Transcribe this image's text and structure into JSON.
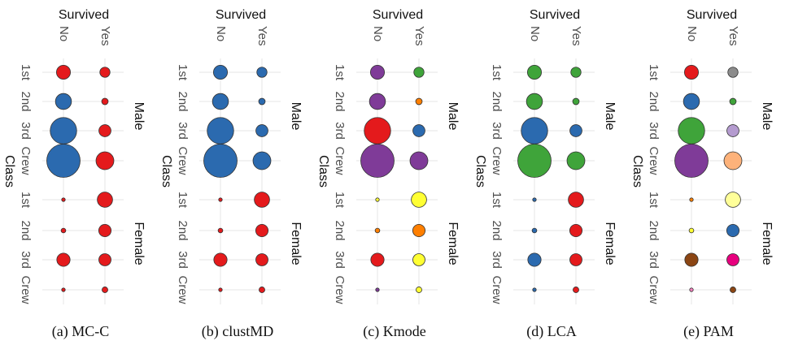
{
  "chart_data": [
    {
      "type": "scatter",
      "caption": "(a) MC-C",
      "column_title": "Survived",
      "row_title": "Class",
      "x_categories": [
        "No",
        "Yes"
      ],
      "y_categories": [
        "1st",
        "2nd",
        "3rd",
        "Crew"
      ],
      "facets": [
        "Male",
        "Female"
      ],
      "size": {
        "Male": {
          "No": [
            118,
            154,
            422,
            670
          ],
          "Yes": [
            62,
            25,
            88,
            192
          ]
        },
        "Female": {
          "No": [
            4,
            13,
            106,
            3
          ],
          "Yes": [
            141,
            93,
            90,
            20
          ]
        }
      },
      "color": {
        "Male": {
          "No": [
            "#E41A1C",
            "#2B6AAF",
            "#2B6AAF",
            "#2B6AAF"
          ],
          "Yes": [
            "#E41A1C",
            "#E41A1C",
            "#E41A1C",
            "#E41A1C"
          ]
        },
        "Female": {
          "No": [
            "#E41A1C",
            "#E41A1C",
            "#E41A1C",
            "#E41A1C"
          ],
          "Yes": [
            "#E41A1C",
            "#E41A1C",
            "#E41A1C",
            "#E41A1C"
          ]
        }
      }
    },
    {
      "type": "scatter",
      "caption": "(b) clustMD",
      "column_title": "Survived",
      "row_title": "Class",
      "x_categories": [
        "No",
        "Yes"
      ],
      "y_categories": [
        "1st",
        "2nd",
        "3rd",
        "Crew"
      ],
      "facets": [
        "Male",
        "Female"
      ],
      "size": {
        "Male": {
          "No": [
            118,
            154,
            422,
            670
          ],
          "Yes": [
            62,
            25,
            88,
            192
          ]
        },
        "Female": {
          "No": [
            4,
            13,
            106,
            3
          ],
          "Yes": [
            141,
            93,
            90,
            20
          ]
        }
      },
      "color": {
        "Male": {
          "No": [
            "#2B6AAF",
            "#2B6AAF",
            "#2B6AAF",
            "#2B6AAF"
          ],
          "Yes": [
            "#2B6AAF",
            "#2B6AAF",
            "#2B6AAF",
            "#2B6AAF"
          ]
        },
        "Female": {
          "No": [
            "#E41A1C",
            "#E41A1C",
            "#E41A1C",
            "#E41A1C"
          ],
          "Yes": [
            "#E41A1C",
            "#E41A1C",
            "#E41A1C",
            "#E41A1C"
          ]
        }
      }
    },
    {
      "type": "scatter",
      "caption": "(c) Kmode",
      "column_title": "Survived",
      "row_title": "Class",
      "x_categories": [
        "No",
        "Yes"
      ],
      "y_categories": [
        "1st",
        "2nd",
        "3rd",
        "Crew"
      ],
      "facets": [
        "Male",
        "Female"
      ],
      "size": {
        "Male": {
          "No": [
            118,
            154,
            422,
            670
          ],
          "Yes": [
            62,
            25,
            88,
            192
          ]
        },
        "Female": {
          "No": [
            4,
            13,
            106,
            3
          ],
          "Yes": [
            141,
            93,
            90,
            20
          ]
        }
      },
      "color": {
        "Male": {
          "No": [
            "#7F3B98",
            "#7F3B98",
            "#E41A1C",
            "#7F3B98"
          ],
          "Yes": [
            "#3FA43A",
            "#FF7F00",
            "#2B6AAF",
            "#7F3B98"
          ]
        },
        "Female": {
          "No": [
            "#FFFF33",
            "#FF7F00",
            "#E41A1C",
            "#7F3B98"
          ],
          "Yes": [
            "#FFFF33",
            "#FF7F00",
            "#FFFF33",
            "#FFFF33"
          ]
        }
      }
    },
    {
      "type": "scatter",
      "caption": "(d) LCA",
      "column_title": "Survived",
      "row_title": "Class",
      "x_categories": [
        "No",
        "Yes"
      ],
      "y_categories": [
        "1st",
        "2nd",
        "3rd",
        "Crew"
      ],
      "facets": [
        "Male",
        "Female"
      ],
      "size": {
        "Male": {
          "No": [
            118,
            154,
            422,
            670
          ],
          "Yes": [
            62,
            25,
            88,
            192
          ]
        },
        "Female": {
          "No": [
            4,
            13,
            106,
            3
          ],
          "Yes": [
            141,
            93,
            90,
            20
          ]
        }
      },
      "color": {
        "Male": {
          "No": [
            "#3FA43A",
            "#3FA43A",
            "#2B6AAF",
            "#3FA43A"
          ],
          "Yes": [
            "#3FA43A",
            "#3FA43A",
            "#2B6AAF",
            "#3FA43A"
          ]
        },
        "Female": {
          "No": [
            "#2B6AAF",
            "#2B6AAF",
            "#2B6AAF",
            "#2B6AAF"
          ],
          "Yes": [
            "#E41A1C",
            "#E41A1C",
            "#E41A1C",
            "#E41A1C"
          ]
        }
      }
    },
    {
      "type": "scatter",
      "caption": "(e) PAM",
      "column_title": "Survived",
      "row_title": "Class",
      "x_categories": [
        "No",
        "Yes"
      ],
      "y_categories": [
        "1st",
        "2nd",
        "3rd",
        "Crew"
      ],
      "facets": [
        "Male",
        "Female"
      ],
      "size": {
        "Male": {
          "No": [
            118,
            154,
            422,
            670
          ],
          "Yes": [
            62,
            25,
            88,
            192
          ]
        },
        "Female": {
          "No": [
            4,
            13,
            106,
            3
          ],
          "Yes": [
            141,
            93,
            90,
            20
          ]
        }
      },
      "color": {
        "Male": {
          "No": [
            "#E41A1C",
            "#2B6AAF",
            "#3FA43A",
            "#7F3B98"
          ],
          "Yes": [
            "#8C8C8C",
            "#3FA43A",
            "#B49BCF",
            "#FDB27A"
          ]
        },
        "Female": {
          "No": [
            "#FF7F00",
            "#FFFF33",
            "#8B4513",
            "#F781BF"
          ],
          "Yes": [
            "#FFFF99",
            "#2B6AAF",
            "#E7007E",
            "#8B4513"
          ]
        }
      }
    }
  ]
}
